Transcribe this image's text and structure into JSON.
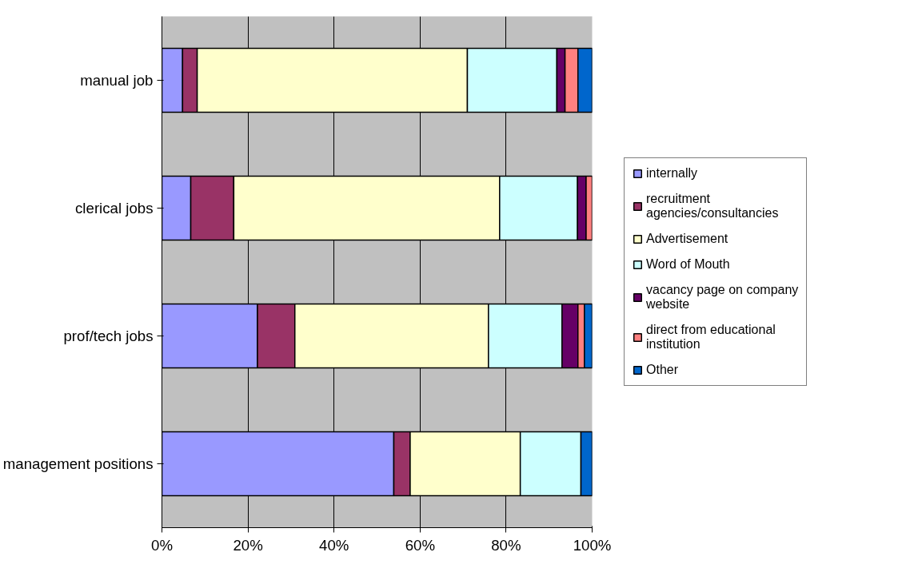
{
  "chart_data": {
    "type": "bar",
    "orientation": "horizontal",
    "stacked": true,
    "categories": [
      "manual job",
      "clerical jobs",
      "prof/tech jobs",
      "management positions"
    ],
    "series": [
      {
        "name": "internally",
        "color": "#9999ff",
        "values": [
          4.8,
          6.7,
          22.2,
          53.9
        ]
      },
      {
        "name": "recruitment agencies/consultancies",
        "color": "#993366",
        "values": [
          3.4,
          10.0,
          8.7,
          3.8
        ]
      },
      {
        "name": "Advertisement",
        "color": "#ffffcc",
        "values": [
          62.8,
          61.8,
          45.0,
          25.6
        ]
      },
      {
        "name": "Word of Mouth",
        "color": "#ccffff",
        "values": [
          20.8,
          18.1,
          17.1,
          14.1
        ]
      },
      {
        "name": "vacancy page on company website",
        "color": "#660066",
        "values": [
          1.9,
          2.0,
          3.7,
          0
        ]
      },
      {
        "name": "direct from educational institution",
        "color": "#ff8080",
        "values": [
          3.0,
          1.4,
          1.5,
          0
        ]
      },
      {
        "name": "Other",
        "color": "#0066cc",
        "values": [
          3.3,
          0,
          1.8,
          2.6
        ]
      }
    ],
    "xlim": [
      0,
      100
    ],
    "xticks": [
      {
        "value": 0,
        "label": "0%"
      },
      {
        "value": 20,
        "label": "20%"
      },
      {
        "value": 40,
        "label": "40%"
      },
      {
        "value": 60,
        "label": "60%"
      },
      {
        "value": 80,
        "label": "80%"
      },
      {
        "value": 100,
        "label": "100%"
      }
    ],
    "grid": "x",
    "legend": "right"
  }
}
